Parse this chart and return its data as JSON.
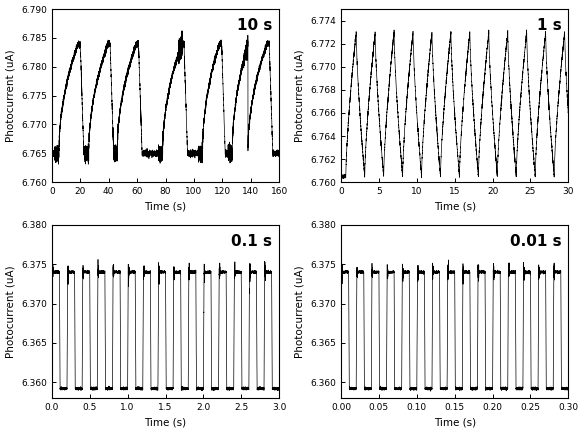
{
  "subplots": [
    {
      "label": "10 s",
      "xlabel": "Time (s)",
      "ylabel": "Photocurrent (uA)",
      "xlim": [
        0,
        160
      ],
      "ylim": [
        6.76,
        6.79
      ],
      "xticks": [
        0,
        20,
        40,
        60,
        80,
        100,
        120,
        140,
        160
      ],
      "yticks": [
        6.76,
        6.765,
        6.77,
        6.775,
        6.78,
        6.785,
        6.79
      ],
      "baseline": 6.765,
      "peak": 6.784,
      "noise_scale": 0.0003
    },
    {
      "label": "1 s",
      "xlabel": "Time (s)",
      "ylabel": "Photocurrent (uA)",
      "xlim": [
        0,
        30
      ],
      "ylim": [
        6.76,
        6.775
      ],
      "xticks": [
        0,
        5,
        10,
        15,
        20,
        25,
        30
      ],
      "yticks": [
        6.76,
        6.762,
        6.764,
        6.766,
        6.768,
        6.77,
        6.772,
        6.774
      ],
      "baseline": 6.7605,
      "peak": 6.773,
      "period": 2.5,
      "noise_scale": 8e-05
    },
    {
      "label": "0.1 s",
      "xlabel": "Time (s)",
      "ylabel": "Photocurrent (uA)",
      "xlim": [
        0.0,
        3.0
      ],
      "ylim": [
        6.358,
        6.38
      ],
      "xticks": [
        0.0,
        0.5,
        1.0,
        1.5,
        2.0,
        2.5,
        3.0
      ],
      "yticks": [
        6.36,
        6.365,
        6.37,
        6.375,
        6.38
      ],
      "baseline": 6.3592,
      "peak": 6.374,
      "period": 0.2,
      "noise_scale": 0.0002
    },
    {
      "label": "0.01 s",
      "xlabel": "Time (s)",
      "ylabel": "Photocurrent (uA)",
      "xlim": [
        0.0,
        0.3
      ],
      "ylim": [
        6.358,
        6.38
      ],
      "xticks": [
        0.0,
        0.05,
        0.1,
        0.15,
        0.2,
        0.25,
        0.3
      ],
      "yticks": [
        6.36,
        6.365,
        6.37,
        6.375,
        6.38
      ],
      "baseline": 6.3592,
      "peak": 6.374,
      "period": 0.02,
      "noise_scale": 0.0002
    }
  ]
}
